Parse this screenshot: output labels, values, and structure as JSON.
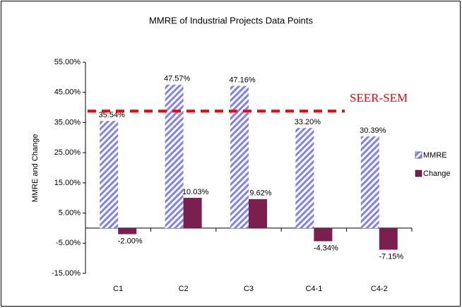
{
  "chart_data": {
    "type": "bar",
    "title": "MMRE of Industrial Projects Data Points",
    "y_label": "MMRE and Change",
    "categories": [
      "C1",
      "C2",
      "C3",
      "C4-1",
      "C4-2"
    ],
    "series": [
      {
        "name": "MMRE",
        "color": "#8080ff",
        "values": [
          35.54,
          47.57,
          47.16,
          33.2,
          30.39
        ],
        "value_labels": [
          "35.54%",
          "47.57%",
          "47.16%",
          "33.20%",
          "30.39%"
        ]
      },
      {
        "name": "Change",
        "color": "#7a1f4e",
        "values": [
          -2.0,
          10.03,
          9.62,
          -4.34,
          -7.15
        ],
        "value_labels": [
          "-2.00%",
          "10.03%",
          "9.62%",
          "-4.34%",
          "-7.15%"
        ]
      }
    ],
    "ylim": [
      -15,
      55
    ],
    "yticks": [
      {
        "value": -15,
        "label": "-15.00%"
      },
      {
        "value": -5,
        "label": "-5.00%"
      },
      {
        "value": 5,
        "label": "5.00%"
      },
      {
        "value": 15,
        "label": "15.00%"
      },
      {
        "value": 25,
        "label": "25.00%"
      },
      {
        "value": 35,
        "label": "35.00%"
      },
      {
        "value": 45,
        "label": "45.00%"
      },
      {
        "value": 55,
        "label": "55.00%"
      }
    ],
    "grid": false,
    "legend": "right",
    "annotations": [
      {
        "text": "SEER-SEM",
        "value": 38.8,
        "color": "#ff0000"
      }
    ]
  }
}
